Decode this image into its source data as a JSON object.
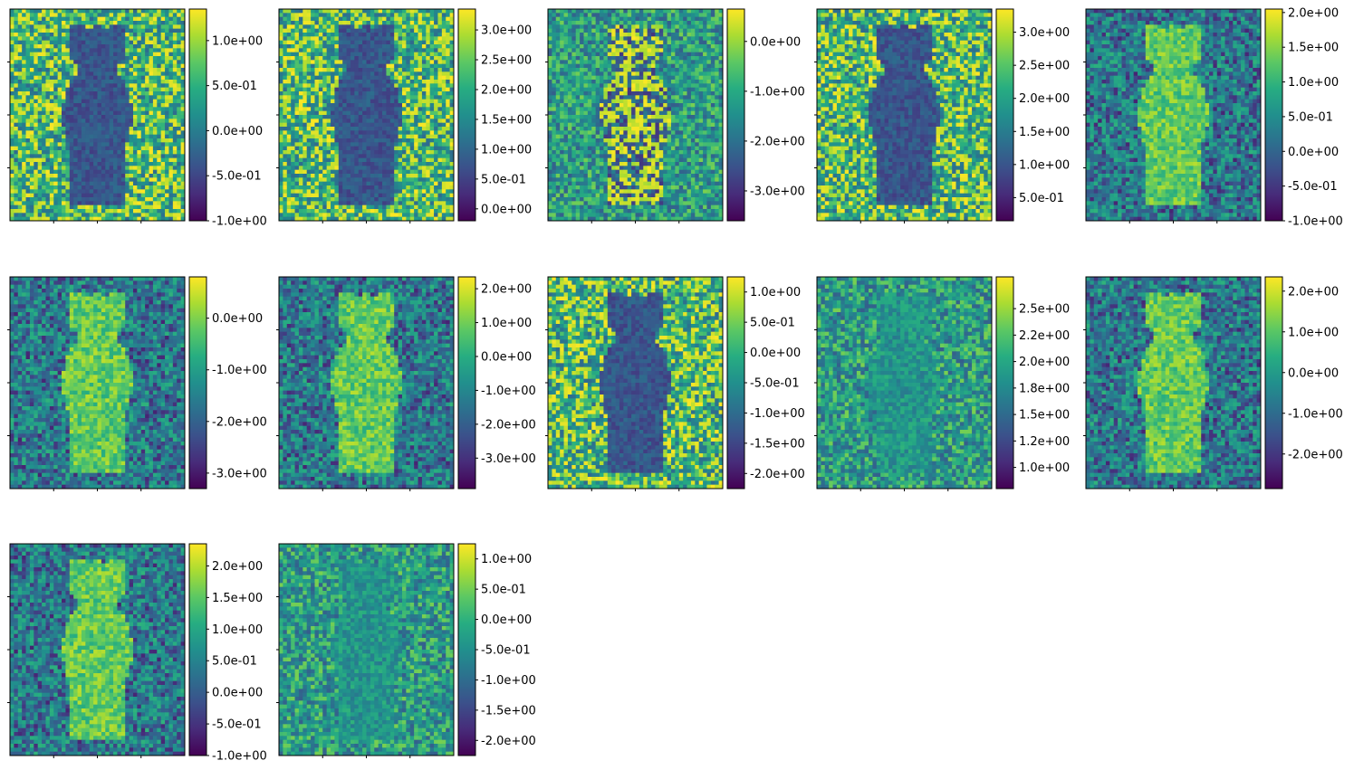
{
  "chart_data": {
    "type": "heatmap",
    "colormap": "viridis",
    "colormap_stops": [
      "#440154",
      "#472c7a",
      "#3b518b",
      "#2c718e",
      "#21908d",
      "#27ad81",
      "#5cc863",
      "#aadc32",
      "#fde725"
    ],
    "grid": "off",
    "colorbar": "right",
    "panels": [
      {
        "range": [
          -1.0,
          1.35
        ],
        "ticks": [
          -1.0,
          -0.5,
          0.0,
          0.5,
          1.0
        ],
        "tick_labels": [
          "-1.0e+00",
          "-5.0e-01",
          "0.0e+00",
          "5.0e-01",
          "1.0e+00"
        ],
        "dog": "dark"
      },
      {
        "range": [
          -0.2,
          3.35
        ],
        "ticks": [
          0.0,
          0.5,
          1.0,
          1.5,
          2.0,
          2.5,
          3.0
        ],
        "tick_labels": [
          "0.0e+00",
          "5.0e-01",
          "1.0e+00",
          "1.5e+00",
          "2.0e+00",
          "2.5e+00",
          "3.0e+00"
        ],
        "dog": "dark"
      },
      {
        "range": [
          -3.6,
          0.65
        ],
        "ticks": [
          -3.0,
          -2.0,
          -1.0,
          0.0
        ],
        "tick_labels": [
          "-3.0e+00",
          "-2.0e+00",
          "-1.0e+00",
          "0.0e+00"
        ],
        "dog": "mixed"
      },
      {
        "range": [
          0.15,
          3.35
        ],
        "ticks": [
          0.5,
          1.0,
          1.5,
          2.0,
          2.5,
          3.0
        ],
        "tick_labels": [
          "5.0e-01",
          "1.0e+00",
          "1.5e+00",
          "2.0e+00",
          "2.5e+00",
          "3.0e+00"
        ],
        "dog": "dark"
      },
      {
        "range": [
          -1.0,
          2.05
        ],
        "ticks": [
          -1.0,
          -0.5,
          0.0,
          0.5,
          1.0,
          1.5,
          2.0
        ],
        "tick_labels": [
          "-1.0e+00",
          "-5.0e-01",
          "0.0e+00",
          "5.0e-01",
          "1.0e+00",
          "1.5e+00",
          "2.0e+00"
        ],
        "dog": "bright"
      },
      {
        "range": [
          -3.3,
          0.8
        ],
        "ticks": [
          -3.0,
          -2.0,
          -1.0,
          0.0
        ],
        "tick_labels": [
          "-3.0e+00",
          "-2.0e+00",
          "-1.0e+00",
          "0.0e+00"
        ],
        "dog": "bright"
      },
      {
        "range": [
          -3.9,
          2.35
        ],
        "ticks": [
          -3.0,
          -2.0,
          -1.0,
          0.0,
          1.0,
          2.0
        ],
        "tick_labels": [
          "-3.0e+00",
          "-2.0e+00",
          "-1.0e+00",
          "0.0e+00",
          "1.0e+00",
          "2.0e+00"
        ],
        "dog": "bright"
      },
      {
        "range": [
          -2.25,
          1.25
        ],
        "ticks": [
          -2.0,
          -1.5,
          -1.0,
          -0.5,
          0.0,
          0.5,
          1.0
        ],
        "tick_labels": [
          "-2.0e+00",
          "-1.5e+00",
          "-1.0e+00",
          "-5.0e-01",
          "0.0e+00",
          "5.0e-01",
          "1.0e+00"
        ],
        "dog": "dark"
      },
      {
        "range": [
          0.8,
          2.8
        ],
        "ticks": [
          1.0,
          1.25,
          1.5,
          1.75,
          2.0,
          2.25,
          2.5
        ],
        "tick_labels": [
          "1.0e+00",
          "1.2e+00",
          "1.5e+00",
          "1.8e+00",
          "2.0e+00",
          "2.2e+00",
          "2.5e+00"
        ],
        "dog": "mid"
      },
      {
        "range": [
          -2.85,
          2.35
        ],
        "ticks": [
          -2.0,
          -1.0,
          0.0,
          1.0,
          2.0
        ],
        "tick_labels": [
          "-2.0e+00",
          "-1.0e+00",
          "0.0e+00",
          "1.0e+00",
          "2.0e+00"
        ],
        "dog": "bright"
      },
      {
        "range": [
          -1.0,
          2.35
        ],
        "ticks": [
          -1.0,
          -0.5,
          0.0,
          0.5,
          1.0,
          1.5,
          2.0
        ],
        "tick_labels": [
          "-1.0e+00",
          "-5.0e-01",
          "0.0e+00",
          "5.0e-01",
          "1.0e+00",
          "1.5e+00",
          "2.0e+00"
        ],
        "dog": "bright"
      },
      {
        "range": [
          -2.25,
          1.25
        ],
        "ticks": [
          -2.0,
          -1.5,
          -1.0,
          -0.5,
          0.0,
          0.5,
          1.0
        ],
        "tick_labels": [
          "-2.0e+00",
          "-1.5e+00",
          "-1.0e+00",
          "-5.0e-01",
          "0.0e+00",
          "5.0e-01",
          "1.0e+00"
        ],
        "dog": "mid"
      }
    ]
  }
}
